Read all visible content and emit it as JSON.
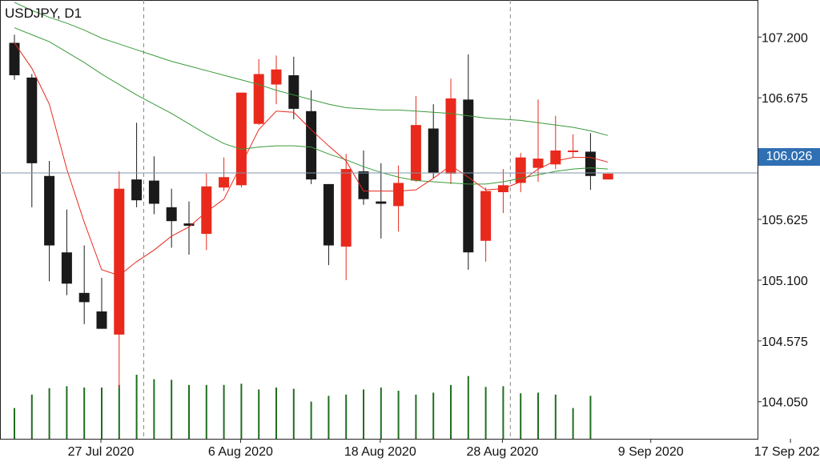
{
  "chart": {
    "symbol_label": "USDJPY, D1",
    "current_price": "106.026"
  },
  "colors": {
    "bull": "#e8291c",
    "bear": "#1a1a1a",
    "ma_fast": "#e8291c",
    "ma_slow": "#3a9a3a",
    "volume": "#1f6e1f",
    "price_line": "#7f95a8",
    "badge": "#2f6fb3",
    "separator": "#888888"
  },
  "chart_data": {
    "type": "candlestick",
    "timeframe": "D1",
    "ylim": [
      103.73,
      107.52
    ],
    "y_ticks": [
      "107.200",
      "106.675",
      "106.150",
      "105.625",
      "105.100",
      "104.575",
      "104.050"
    ],
    "x_ticks": [
      "27 Jul 2020",
      "6 Aug 2020",
      "18 Aug 2020",
      "28 Aug 2020",
      "9 Sep 2020",
      "17 Sep 2020"
    ],
    "current_price": 106.026,
    "candles": [
      {
        "o": 107.15,
        "h": 107.22,
        "l": 106.83,
        "c": 106.87
      },
      {
        "o": 106.85,
        "h": 106.88,
        "l": 105.73,
        "c": 106.11
      },
      {
        "o": 106.0,
        "h": 106.13,
        "l": 105.09,
        "c": 105.4
      },
      {
        "o": 105.34,
        "h": 105.71,
        "l": 104.97,
        "c": 105.07
      },
      {
        "o": 104.99,
        "h": 105.4,
        "l": 104.72,
        "c": 104.91
      },
      {
        "o": 104.83,
        "h": 105.12,
        "l": 104.68,
        "c": 104.68
      },
      {
        "o": 104.63,
        "h": 106.04,
        "l": 104.17,
        "c": 105.89
      },
      {
        "o": 105.97,
        "h": 106.46,
        "l": 105.73,
        "c": 105.79
      },
      {
        "o": 105.96,
        "h": 106.17,
        "l": 105.67,
        "c": 105.76
      },
      {
        "o": 105.73,
        "h": 105.89,
        "l": 105.38,
        "c": 105.61
      },
      {
        "o": 105.59,
        "h": 105.78,
        "l": 105.32,
        "c": 105.57
      },
      {
        "o": 105.5,
        "h": 106.02,
        "l": 105.36,
        "c": 105.91
      },
      {
        "o": 105.9,
        "h": 106.16,
        "l": 105.87,
        "c": 105.99
      },
      {
        "o": 105.92,
        "h": 106.69,
        "l": 105.9,
        "c": 106.72
      },
      {
        "o": 106.45,
        "h": 107.01,
        "l": 106.44,
        "c": 106.88
      },
      {
        "o": 106.79,
        "h": 107.04,
        "l": 106.62,
        "c": 106.92
      },
      {
        "o": 106.87,
        "h": 107.03,
        "l": 106.49,
        "c": 106.58
      },
      {
        "o": 106.56,
        "h": 106.74,
        "l": 105.93,
        "c": 105.97
      },
      {
        "o": 105.93,
        "h": 105.93,
        "l": 105.23,
        "c": 105.4
      },
      {
        "o": 105.39,
        "h": 106.19,
        "l": 105.1,
        "c": 106.06
      },
      {
        "o": 106.04,
        "h": 106.22,
        "l": 105.75,
        "c": 105.8
      },
      {
        "o": 105.78,
        "h": 106.11,
        "l": 105.46,
        "c": 105.76
      },
      {
        "o": 105.74,
        "h": 106.09,
        "l": 105.52,
        "c": 105.94
      },
      {
        "o": 105.96,
        "h": 106.69,
        "l": 105.95,
        "c": 106.44
      },
      {
        "o": 106.41,
        "h": 106.62,
        "l": 105.98,
        "c": 106.03
      },
      {
        "o": 106.02,
        "h": 106.84,
        "l": 105.93,
        "c": 106.67
      },
      {
        "o": 106.66,
        "h": 107.05,
        "l": 105.19,
        "c": 105.34
      },
      {
        "o": 105.44,
        "h": 105.9,
        "l": 105.26,
        "c": 105.87
      },
      {
        "o": 105.86,
        "h": 106.06,
        "l": 105.68,
        "c": 105.92
      },
      {
        "o": 105.94,
        "h": 106.2,
        "l": 105.86,
        "c": 106.16
      },
      {
        "o": 106.07,
        "h": 106.66,
        "l": 105.95,
        "c": 106.15
      },
      {
        "o": 106.1,
        "h": 106.52,
        "l": 106.06,
        "c": 106.22
      },
      {
        "o": 106.22,
        "h": 106.36,
        "l": 106.16,
        "c": 106.22
      },
      {
        "o": 106.21,
        "h": 106.37,
        "l": 105.88,
        "c": 106.0
      },
      {
        "o": 105.97,
        "h": 106.02,
        "l": 105.97,
        "c": 106.02
      }
    ],
    "ma_fast": [
      107.15,
      106.93,
      106.62,
      106.06,
      105.6,
      105.19,
      105.14,
      105.26,
      105.36,
      105.48,
      105.56,
      105.69,
      105.8,
      106.1,
      106.4,
      106.56,
      106.55,
      106.4,
      106.26,
      106.13,
      105.87,
      105.87,
      105.87,
      105.88,
      105.98,
      106.09,
      105.99,
      105.88,
      105.89,
      105.95,
      106.06,
      106.13,
      106.16,
      106.16,
      106.12
    ],
    "ma_slow": [
      107.28,
      107.22,
      107.16,
      107.07,
      106.98,
      106.88,
      106.79,
      106.7,
      106.62,
      106.54,
      106.45,
      106.36,
      106.28,
      106.23,
      106.25,
      106.26,
      106.26,
      106.25,
      106.19,
      106.14,
      106.08,
      106.03,
      105.99,
      105.96,
      105.95,
      105.94,
      105.93,
      105.93,
      105.95,
      105.98,
      106.01,
      106.04,
      106.06,
      106.07,
      106.06
    ],
    "ma_upper": [
      107.5,
      107.43,
      107.37,
      107.32,
      107.26,
      107.19,
      107.14,
      107.09,
      107.04,
      106.99,
      106.95,
      106.91,
      106.87,
      106.83,
      106.79,
      106.74,
      106.7,
      106.66,
      106.62,
      106.59,
      106.58,
      106.57,
      106.57,
      106.56,
      106.55,
      106.54,
      106.52,
      106.5,
      106.49,
      106.48,
      106.46,
      106.44,
      106.42,
      106.39,
      106.35
    ],
    "volume": [
      0.48,
      0.69,
      0.79,
      0.82,
      0.8,
      0.8,
      0.84,
      1.0,
      0.93,
      0.92,
      0.84,
      0.84,
      0.84,
      0.86,
      0.77,
      0.8,
      0.78,
      0.58,
      0.67,
      0.69,
      0.77,
      0.8,
      0.75,
      0.69,
      0.72,
      0.84,
      0.98,
      0.81,
      0.82,
      0.71,
      0.72,
      0.69,
      0.48,
      0.67,
      0.0
    ]
  }
}
